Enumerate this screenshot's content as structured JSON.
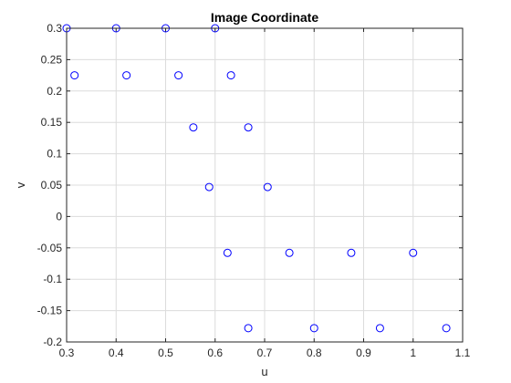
{
  "chart_data": {
    "type": "scatter",
    "title": "Image Coordinate",
    "xlabel": "u",
    "ylabel": "v",
    "xlim": [
      0.3,
      1.1
    ],
    "ylim": [
      -0.2,
      0.3
    ],
    "xticks": [
      0.3,
      0.4,
      0.5,
      0.6,
      0.7,
      0.8,
      0.9,
      1.0,
      1.1
    ],
    "xtick_labels": [
      "0.3",
      "0.4",
      "0.5",
      "0.6",
      "0.7",
      "0.8",
      "0.9",
      "1",
      "1.1"
    ],
    "yticks": [
      -0.2,
      -0.15,
      -0.1,
      -0.05,
      0,
      0.05,
      0.1,
      0.15,
      0.2,
      0.25,
      0.3
    ],
    "ytick_labels": [
      "-0.2",
      "-0.15",
      "-0.1",
      "-0.05",
      "0",
      "0.05",
      "0.1",
      "0.15",
      "0.2",
      "0.25",
      "0.3"
    ],
    "grid": true,
    "marker": "circle-open",
    "colors": {
      "marker": "#0000ff",
      "axis": "#262626",
      "grid": "#dcdcdc"
    },
    "series": [
      {
        "points": [
          {
            "x": 0.3,
            "y": 0.3
          },
          {
            "x": 0.4,
            "y": 0.3
          },
          {
            "x": 0.5,
            "y": 0.3
          },
          {
            "x": 0.6,
            "y": 0.3
          },
          {
            "x": 0.316,
            "y": 0.225
          },
          {
            "x": 0.421,
            "y": 0.225
          },
          {
            "x": 0.526,
            "y": 0.225
          },
          {
            "x": 0.632,
            "y": 0.225
          },
          {
            "x": 0.556,
            "y": 0.142
          },
          {
            "x": 0.667,
            "y": 0.142
          },
          {
            "x": 0.588,
            "y": 0.047
          },
          {
            "x": 0.706,
            "y": 0.047
          },
          {
            "x": 0.625,
            "y": -0.058
          },
          {
            "x": 0.75,
            "y": -0.058
          },
          {
            "x": 0.875,
            "y": -0.058
          },
          {
            "x": 1.0,
            "y": -0.058
          },
          {
            "x": 0.667,
            "y": -0.178
          },
          {
            "x": 0.8,
            "y": -0.178
          },
          {
            "x": 0.933,
            "y": -0.178
          },
          {
            "x": 1.067,
            "y": -0.178
          }
        ]
      }
    ]
  }
}
